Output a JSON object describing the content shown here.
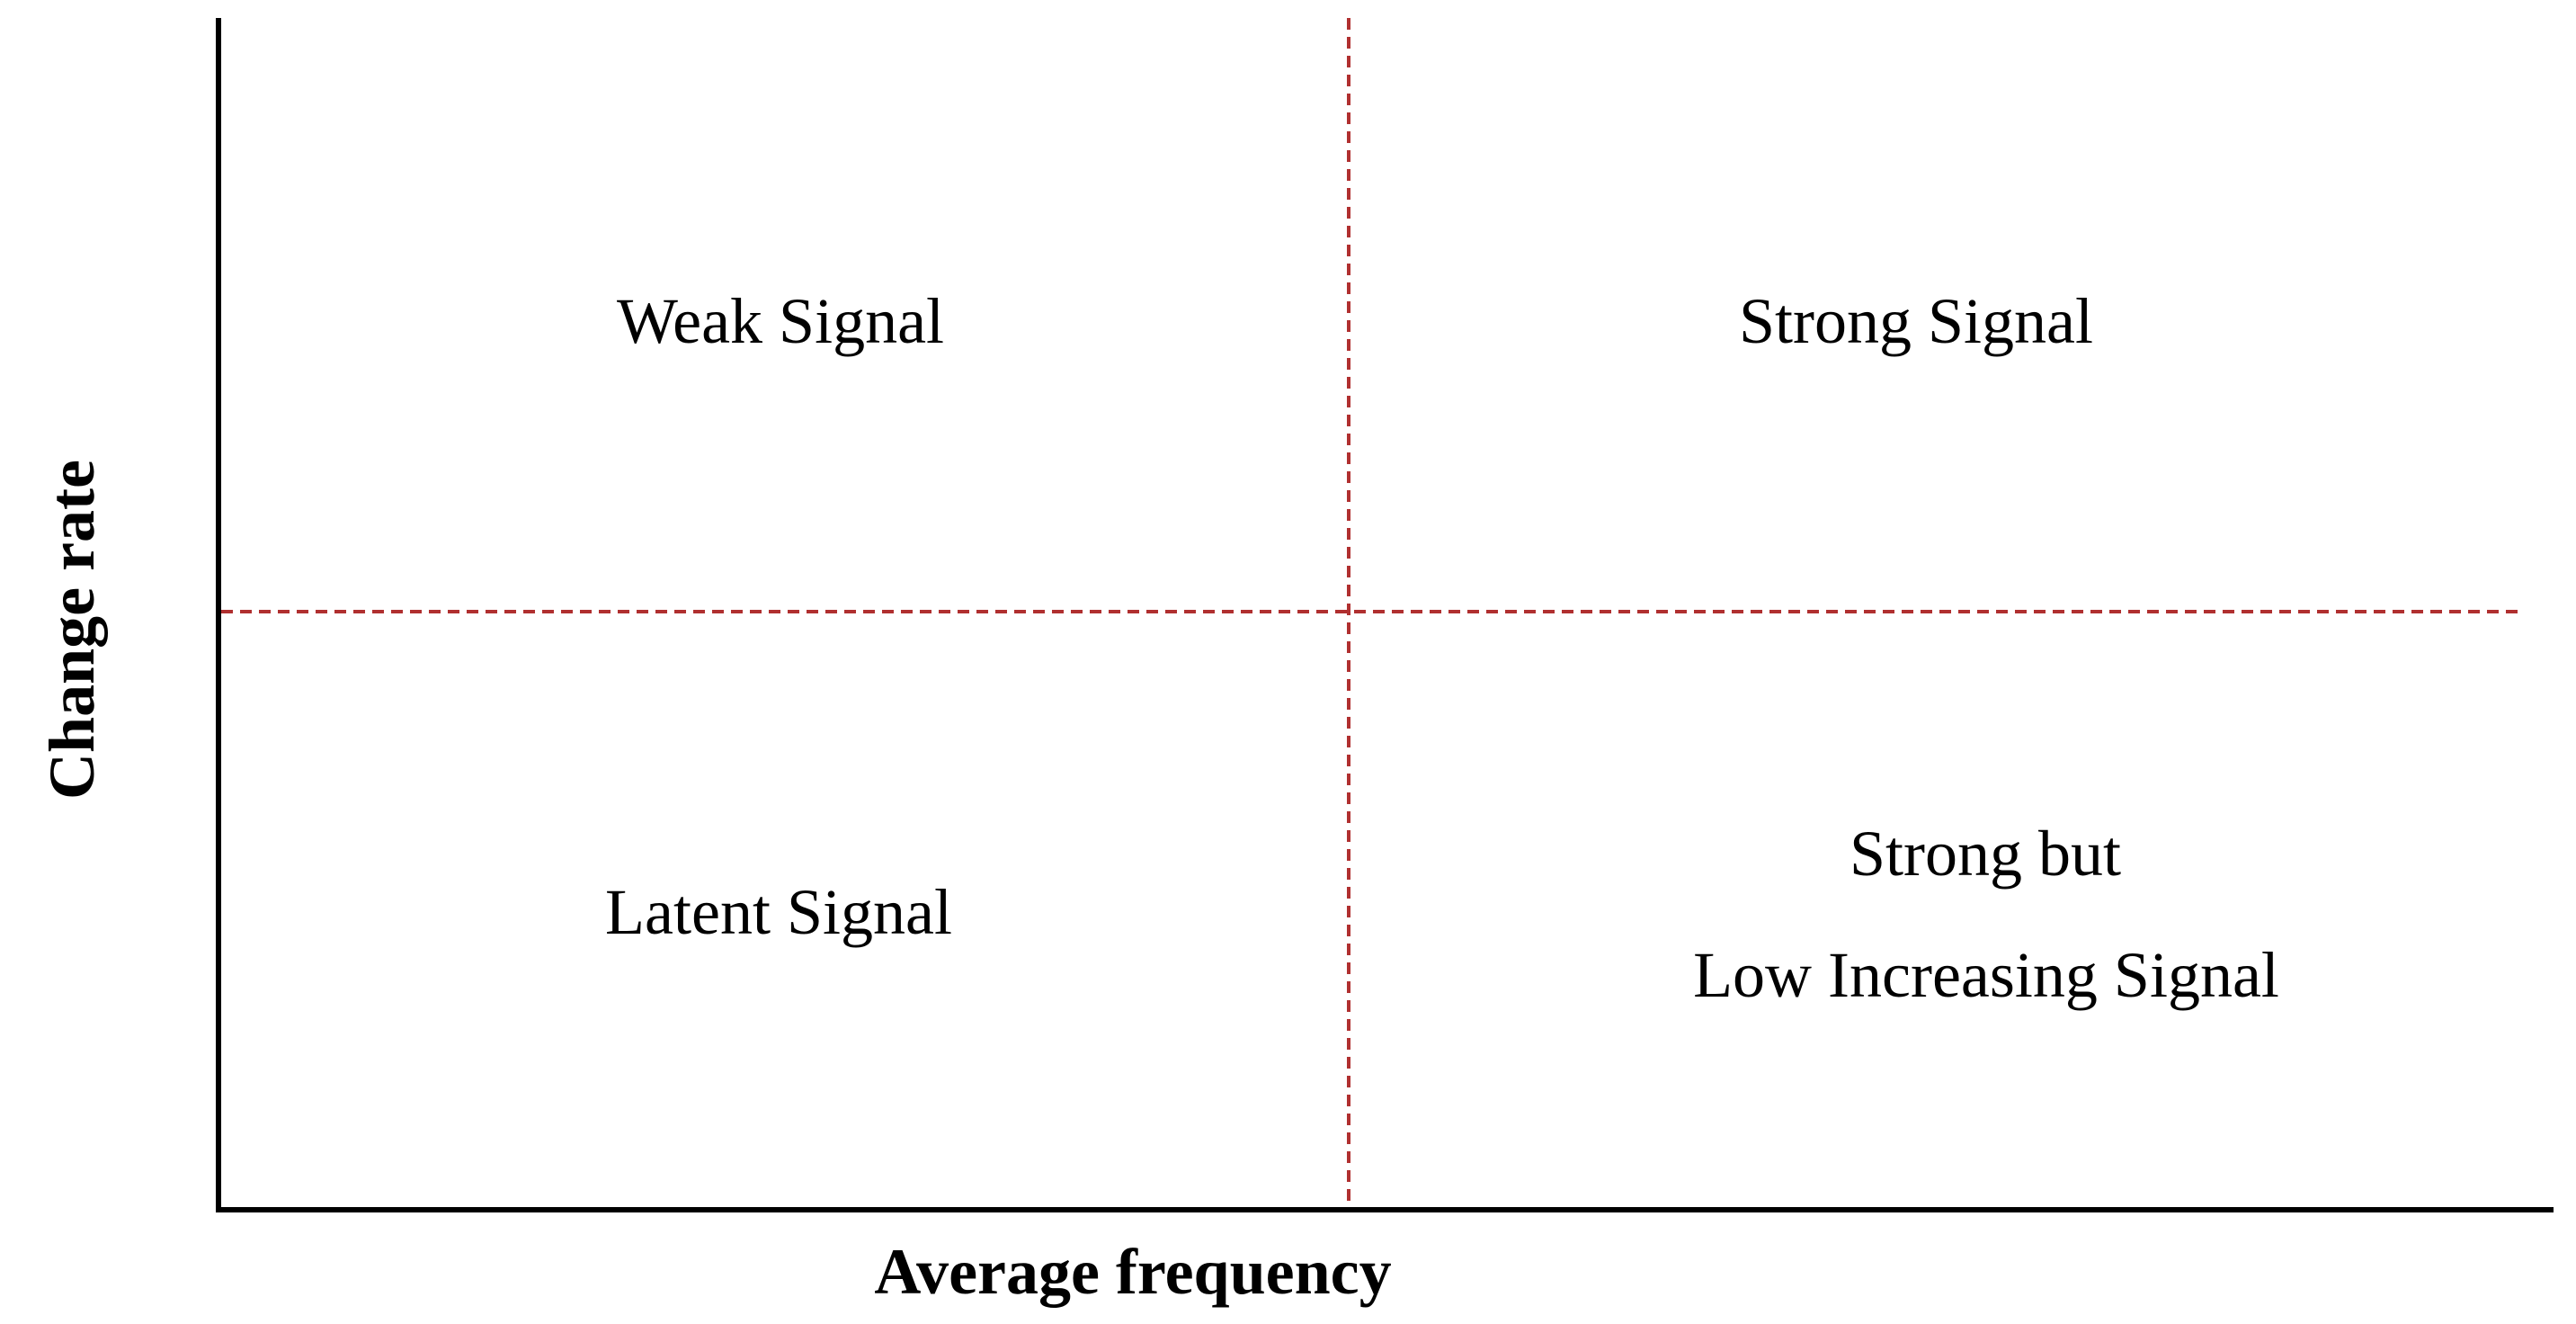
{
  "axes": {
    "x_label": "Average frequency",
    "y_label": "Change rate"
  },
  "quadrants": {
    "top_left": "Weak Signal",
    "top_right": "Strong Signal",
    "bottom_left": "Latent Signal",
    "bottom_right_line1": "Strong but",
    "bottom_right_line2": "Low Increasing Signal"
  },
  "colors": {
    "axis": "#000000",
    "divider": "#b03030"
  }
}
